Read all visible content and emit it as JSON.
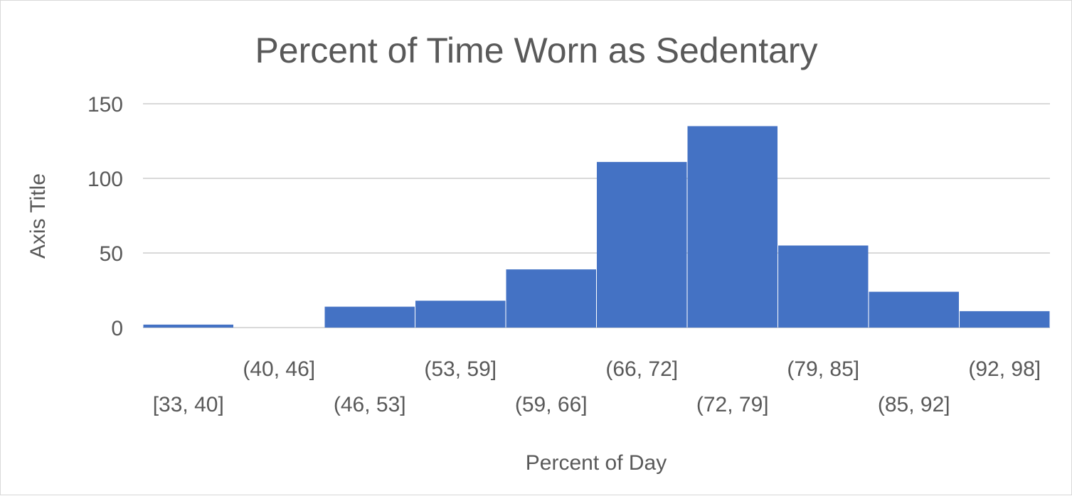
{
  "chart_data": {
    "type": "bar",
    "title": "Percent of Time Worn as Sedentary",
    "xlabel": "Percent of Day",
    "ylabel": "Axis Title",
    "categories": [
      "[33, 40]",
      "(40, 46]",
      "(46, 53]",
      "(53, 59]",
      "(59, 66]",
      "(66, 72]",
      "(72, 79]",
      "(79, 85]",
      "(85, 92]",
      "(92, 98]"
    ],
    "values": [
      2,
      0,
      14,
      18,
      39,
      111,
      135,
      55,
      24,
      11
    ],
    "ylim": [
      0,
      150
    ],
    "yticks": [
      "0",
      "50",
      "100",
      "150"
    ],
    "grid": true,
    "legend": "none",
    "bar_color": "#4472C4",
    "grid_color": "#d9d9d9",
    "text_color": "#595959"
  }
}
